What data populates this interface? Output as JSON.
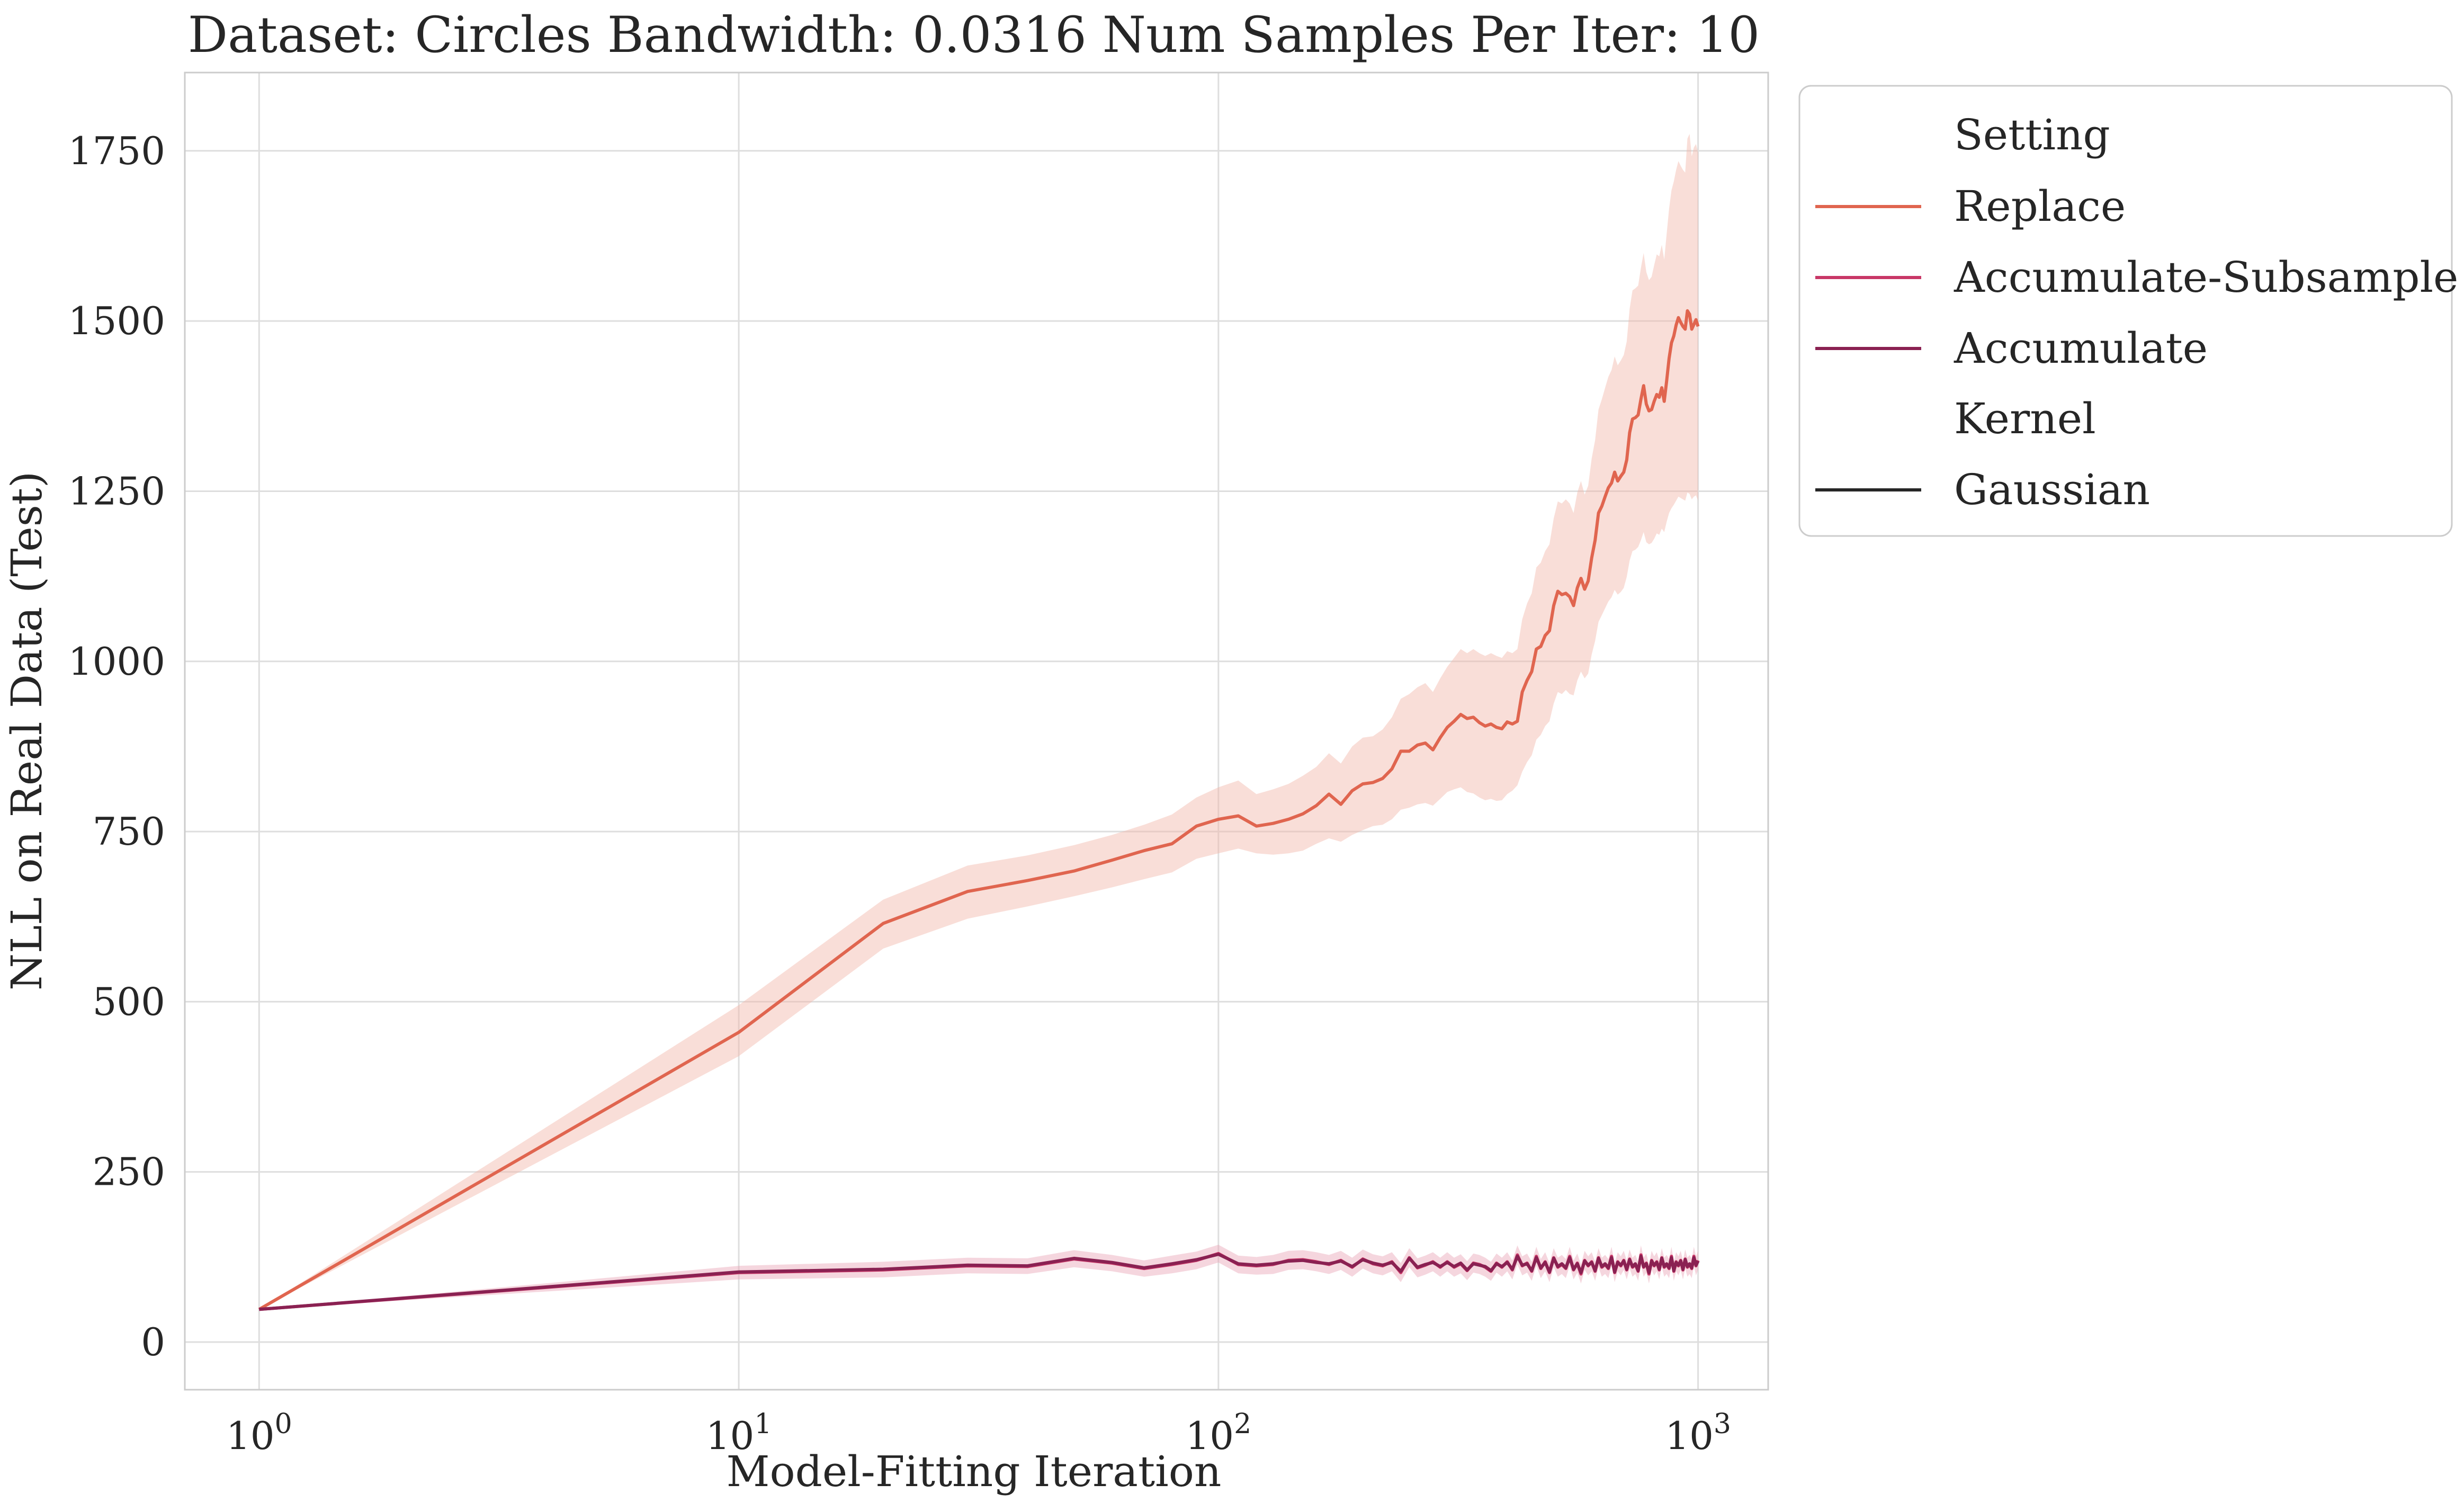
{
  "chart_data": {
    "type": "line",
    "title": "Dataset: Circles Bandwidth: 0.0316 Num Samples Per Iter: 10",
    "xlabel": "Model-Fitting Iteration",
    "ylabel": "NLL on Real Data (Test)",
    "xscale": "log",
    "xlim": [
      0.7,
      1400
    ],
    "ylim": [
      -70,
      1865
    ],
    "x_ticks": [
      1,
      10,
      100,
      1000
    ],
    "x_tick_base": "10",
    "x_tick_exponents": [
      "0",
      "1",
      "2",
      "3"
    ],
    "y_ticks": [
      0,
      250,
      500,
      750,
      1000,
      1250,
      1500,
      1750
    ],
    "y_tick_labels": [
      "0",
      "250",
      "500",
      "750",
      "1000",
      "1250",
      "1500",
      "1750"
    ],
    "grid": true,
    "legend": {
      "placement": "outside-top-right",
      "setting_title": "Setting",
      "kernel_title": "Kernel",
      "kernel_entries": [
        {
          "name": "Gaussian",
          "color": "#262626"
        }
      ]
    },
    "series": [
      {
        "name": "Replace",
        "color": "#e0654f",
        "band_color": "#f2b5a8",
        "x": [
          1,
          10,
          20,
          30,
          40,
          50,
          60,
          70,
          80,
          90,
          100,
          110,
          120,
          130,
          140,
          150,
          160,
          170,
          180,
          190,
          200,
          210,
          220,
          230,
          240,
          250,
          260,
          270,
          280,
          290,
          300,
          310,
          320,
          330,
          340,
          350,
          360,
          370,
          380,
          390,
          400,
          410,
          420,
          430,
          440,
          450,
          460,
          470,
          480,
          490,
          500,
          510,
          520,
          530,
          540,
          550,
          560,
          570,
          580,
          590,
          600,
          610,
          620,
          630,
          640,
          650,
          660,
          670,
          680,
          690,
          700,
          710,
          720,
          730,
          740,
          750,
          760,
          770,
          780,
          790,
          800,
          810,
          820,
          830,
          840,
          850,
          860,
          870,
          880,
          890,
          900,
          910,
          920,
          930,
          940,
          950,
          960,
          970,
          980,
          990,
          1000
        ],
        "y": [
          48,
          455,
          615,
          662,
          678,
          692,
          708,
          722,
          732,
          758,
          768,
          773,
          758,
          762,
          768,
          776,
          788,
          805,
          790,
          810,
          820,
          822,
          828,
          842,
          868,
          868,
          877,
          880,
          870,
          888,
          903,
          912,
          922,
          916,
          918,
          910,
          905,
          908,
          903,
          901,
          911,
          908,
          912,
          955,
          972,
          985,
          1018,
          1022,
          1038,
          1045,
          1082,
          1103,
          1098,
          1100,
          1095,
          1082,
          1108,
          1122,
          1106,
          1118,
          1152,
          1178,
          1218,
          1228,
          1242,
          1255,
          1262,
          1278,
          1265,
          1272,
          1278,
          1296,
          1336,
          1356,
          1358,
          1362,
          1385,
          1405,
          1378,
          1368,
          1370,
          1382,
          1392,
          1388,
          1402,
          1382,
          1412,
          1445,
          1468,
          1478,
          1494,
          1505,
          1498,
          1492,
          1488,
          1515,
          1510,
          1488,
          1495,
          1502,
          1492
        ],
        "lower": [
          48,
          420,
          578,
          622,
          640,
          655,
          668,
          680,
          690,
          710,
          718,
          725,
          718,
          716,
          718,
          722,
          732,
          740,
          735,
          745,
          752,
          758,
          760,
          768,
          782,
          785,
          790,
          792,
          788,
          798,
          808,
          812,
          815,
          808,
          806,
          800,
          796,
          798,
          795,
          796,
          805,
          810,
          818,
          838,
          852,
          862,
          885,
          892,
          905,
          912,
          938,
          955,
          952,
          958,
          952,
          950,
          972,
          985,
          975,
          982,
          1010,
          1030,
          1058,
          1068,
          1078,
          1088,
          1094,
          1105,
          1098,
          1102,
          1108,
          1124,
          1148,
          1162,
          1164,
          1168,
          1178,
          1190,
          1175,
          1172,
          1174,
          1180,
          1188,
          1186,
          1195,
          1190,
          1205,
          1218,
          1225,
          1230,
          1236,
          1242,
          1240,
          1238,
          1236,
          1248,
          1246,
          1238,
          1242,
          1244,
          1236
        ],
        "upper": [
          48,
          495,
          650,
          700,
          715,
          730,
          745,
          760,
          775,
          800,
          815,
          825,
          805,
          812,
          820,
          832,
          845,
          865,
          850,
          875,
          888,
          890,
          900,
          918,
          945,
          952,
          962,
          968,
          955,
          975,
          992,
          1005,
          1018,
          1012,
          1018,
          1012,
          1008,
          1012,
          1008,
          1005,
          1015,
          1012,
          1018,
          1062,
          1085,
          1100,
          1138,
          1145,
          1162,
          1172,
          1210,
          1235,
          1232,
          1238,
          1232,
          1218,
          1248,
          1265,
          1245,
          1258,
          1298,
          1325,
          1370,
          1385,
          1402,
          1418,
          1428,
          1448,
          1435,
          1442,
          1450,
          1470,
          1518,
          1545,
          1548,
          1552,
          1578,
          1600,
          1572,
          1560,
          1565,
          1582,
          1598,
          1595,
          1612,
          1590,
          1628,
          1665,
          1692,
          1705,
          1722,
          1735,
          1728,
          1722,
          1718,
          1768,
          1775,
          1742,
          1755,
          1760,
          1748
        ]
      },
      {
        "name": "Accumulate-Subsample",
        "color": "#c83767",
        "band_color": "#e8a3b6",
        "x": [
          1,
          10,
          20,
          30,
          40,
          50,
          60,
          70,
          80,
          90,
          100,
          110,
          120,
          130,
          140,
          150,
          160,
          170,
          180,
          190,
          200,
          210,
          220,
          230,
          240,
          250,
          260,
          270,
          280,
          290,
          300,
          310,
          320,
          330,
          340,
          350,
          360,
          370,
          380,
          390,
          400,
          410,
          420,
          430,
          440,
          450,
          460,
          470,
          480,
          490,
          500,
          510,
          520,
          530,
          540,
          550,
          560,
          570,
          580,
          590,
          600,
          610,
          620,
          630,
          640,
          650,
          660,
          670,
          680,
          690,
          700,
          710,
          720,
          730,
          740,
          750,
          760,
          770,
          780,
          790,
          800,
          810,
          820,
          830,
          840,
          850,
          860,
          870,
          880,
          890,
          900,
          910,
          920,
          930,
          940,
          950,
          960,
          970,
          980,
          990,
          1000
        ],
        "y": [
          48,
          102,
          106,
          112,
          111,
          122,
          116,
          108,
          114,
          120,
          130,
          114,
          112,
          114,
          120,
          121,
          118,
          114,
          120,
          110,
          122,
          115,
          112,
          118,
          102,
          124,
          109,
          113,
          118,
          110,
          118,
          110,
          115,
          105,
          116,
          114,
          110,
          104,
          116,
          110,
          118,
          106,
          128,
          112,
          116,
          104,
          126,
          108,
          118,
          102,
          124,
          110,
          114,
          108,
          126,
          106,
          116,
          100,
          120,
          112,
          118,
          104,
          124,
          110,
          114,
          108,
          126,
          102,
          118,
          112,
          120,
          106,
          122,
          110,
          114,
          104,
          128,
          110,
          116,
          100,
          120,
          112,
          118,
          106,
          124,
          110,
          114,
          108,
          126,
          104,
          118,
          112,
          120,
          106,
          122,
          110,
          114,
          108,
          126,
          112,
          120
        ],
        "lower": [
          48,
          92,
          95,
          101,
          100,
          110,
          104,
          96,
          101,
          107,
          117,
          101,
          99,
          100,
          106,
          107,
          104,
          100,
          106,
          96,
          108,
          101,
          98,
          104,
          88,
          110,
          95,
          99,
          104,
          96,
          104,
          96,
          101,
          91,
          102,
          100,
          96,
          90,
          102,
          96,
          104,
          92,
          114,
          98,
          102,
          90,
          112,
          94,
          104,
          88,
          110,
          96,
          100,
          94,
          112,
          92,
          102,
          86,
          106,
          98,
          104,
          90,
          110,
          96,
          100,
          94,
          112,
          88,
          104,
          98,
          106,
          92,
          108,
          96,
          100,
          90,
          114,
          96,
          102,
          86,
          106,
          98,
          104,
          92,
          110,
          96,
          100,
          94,
          112,
          90,
          104,
          98,
          106,
          92,
          108,
          96,
          100,
          94,
          112,
          98,
          106
        ],
        "upper": [
          48,
          112,
          118,
          124,
          123,
          135,
          128,
          120,
          127,
          133,
          143,
          127,
          125,
          128,
          134,
          135,
          132,
          128,
          134,
          124,
          136,
          129,
          126,
          132,
          116,
          138,
          123,
          127,
          132,
          124,
          132,
          124,
          129,
          119,
          130,
          128,
          124,
          118,
          130,
          124,
          132,
          120,
          142,
          126,
          130,
          118,
          140,
          122,
          132,
          116,
          138,
          124,
          128,
          122,
          140,
          120,
          130,
          114,
          134,
          126,
          132,
          118,
          138,
          124,
          128,
          122,
          140,
          116,
          132,
          126,
          134,
          120,
          136,
          124,
          128,
          118,
          142,
          124,
          130,
          114,
          134,
          126,
          132,
          120,
          138,
          124,
          128,
          122,
          140,
          118,
          132,
          126,
          134,
          120,
          136,
          124,
          128,
          122,
          140,
          126,
          134
        ]
      },
      {
        "name": "Accumulate",
        "color": "#8a2152",
        "band_color": "#c98aa4",
        "x": [
          1,
          10,
          20,
          30,
          40,
          50,
          60,
          70,
          80,
          90,
          100,
          110,
          120,
          130,
          140,
          150,
          160,
          170,
          180,
          190,
          200,
          210,
          220,
          230,
          240,
          250,
          260,
          270,
          280,
          290,
          300,
          310,
          320,
          330,
          340,
          350,
          360,
          370,
          380,
          390,
          400,
          410,
          420,
          430,
          440,
          450,
          460,
          470,
          480,
          490,
          500,
          510,
          520,
          530,
          540,
          550,
          560,
          570,
          580,
          590,
          600,
          610,
          620,
          630,
          640,
          650,
          660,
          670,
          680,
          690,
          700,
          710,
          720,
          730,
          740,
          750,
          760,
          770,
          780,
          790,
          800,
          810,
          820,
          830,
          840,
          850,
          860,
          870,
          880,
          890,
          900,
          910,
          920,
          930,
          940,
          950,
          960,
          970,
          980,
          990,
          1000
        ],
        "y": [
          48,
          103,
          107,
          113,
          112,
          123,
          117,
          109,
          115,
          121,
          129,
          115,
          113,
          115,
          119,
          120,
          117,
          115,
          119,
          111,
          121,
          116,
          113,
          117,
          104,
          123,
          110,
          114,
          117,
          111,
          117,
          111,
          116,
          106,
          115,
          113,
          111,
          105,
          115,
          111,
          117,
          107,
          126,
          113,
          115,
          105,
          124,
          109,
          117,
          103,
          123,
          111,
          115,
          109,
          124,
          107,
          115,
          102,
          119,
          113,
          117,
          105,
          123,
          111,
          115,
          109,
          124,
          103,
          117,
          113,
          119,
          107,
          121,
          111,
          115,
          105,
          126,
          111,
          115,
          102,
          119,
          113,
          117,
          107,
          123,
          111,
          115,
          109,
          124,
          105,
          117,
          113,
          119,
          107,
          121,
          111,
          115,
          109,
          124,
          113,
          119
        ]
      }
    ]
  }
}
